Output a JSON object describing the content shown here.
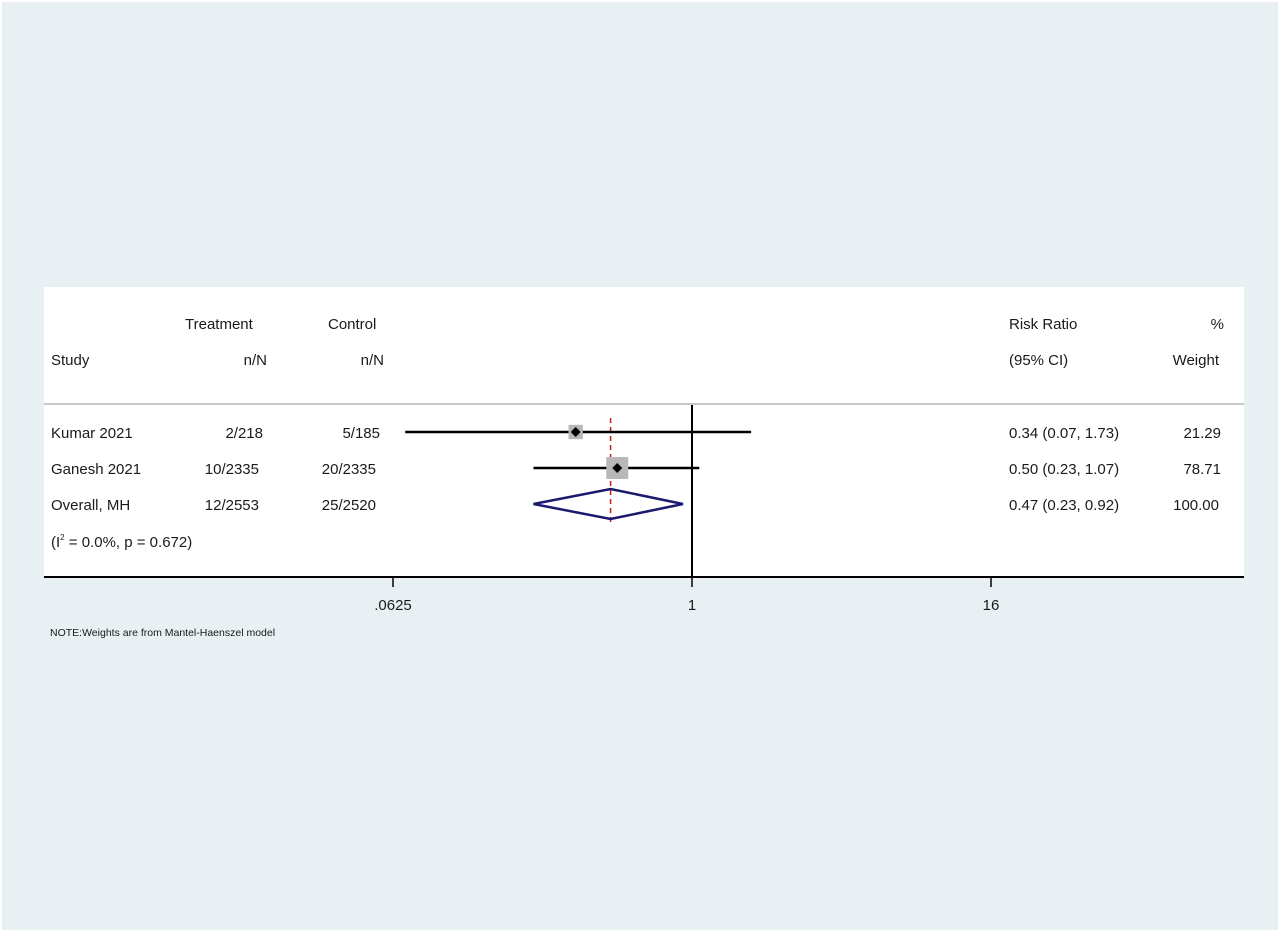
{
  "chart_data": {
    "type": "forest",
    "scale": "log",
    "null_value": 1,
    "x_ticks": [
      {
        "value": 0.0625,
        "label": ".0625"
      },
      {
        "value": 1,
        "label": "1"
      },
      {
        "value": 16,
        "label": "16"
      }
    ],
    "headers": {
      "study": "Study",
      "treatment_top": "Treatment",
      "treatment_bottom": "n/N",
      "control_top": "Control",
      "control_bottom": "n/N",
      "effect_top": "Risk Ratio",
      "effect_bottom": "(95% CI)",
      "weight_top": "%",
      "weight_bottom": "Weight"
    },
    "studies": [
      {
        "name": "Kumar 2021",
        "treatment": "2/218",
        "control": "5/185",
        "rr": 0.34,
        "lower": 0.07,
        "upper": 1.73,
        "ci_text": "0.34 (0.07, 1.73)",
        "weight": 21.29,
        "weight_text": "21.29"
      },
      {
        "name": "Ganesh 2021",
        "treatment": "10/2335",
        "control": "20/2335",
        "rr": 0.5,
        "lower": 0.23,
        "upper": 1.07,
        "ci_text": "0.50 (0.23, 1.07)",
        "weight": 78.71,
        "weight_text": "78.71"
      }
    ],
    "overall": {
      "name": "Overall, MH",
      "treatment": "12/2553",
      "control": "25/2520",
      "rr": 0.47,
      "lower": 0.23,
      "upper": 0.92,
      "ci_text": "0.47 (0.23, 0.92)",
      "weight_text": "100.00"
    },
    "heterogeneity": {
      "prefix": "(I",
      "superscript": "2",
      "suffix": " = 0.0%, p = 0.672)"
    },
    "note": "NOTE:Weights are from Mantel-Haenszel model",
    "colors": {
      "background": "#e8f0f3",
      "panel": "#ffffff",
      "ci_line": "#000000",
      "weight_box": "#b8b8b8",
      "point": "#000000",
      "diamond": "#1a1a6e",
      "overall_line": "#a52a2a",
      "axis": "#000000",
      "header_rule": "#c8c8c8"
    }
  }
}
